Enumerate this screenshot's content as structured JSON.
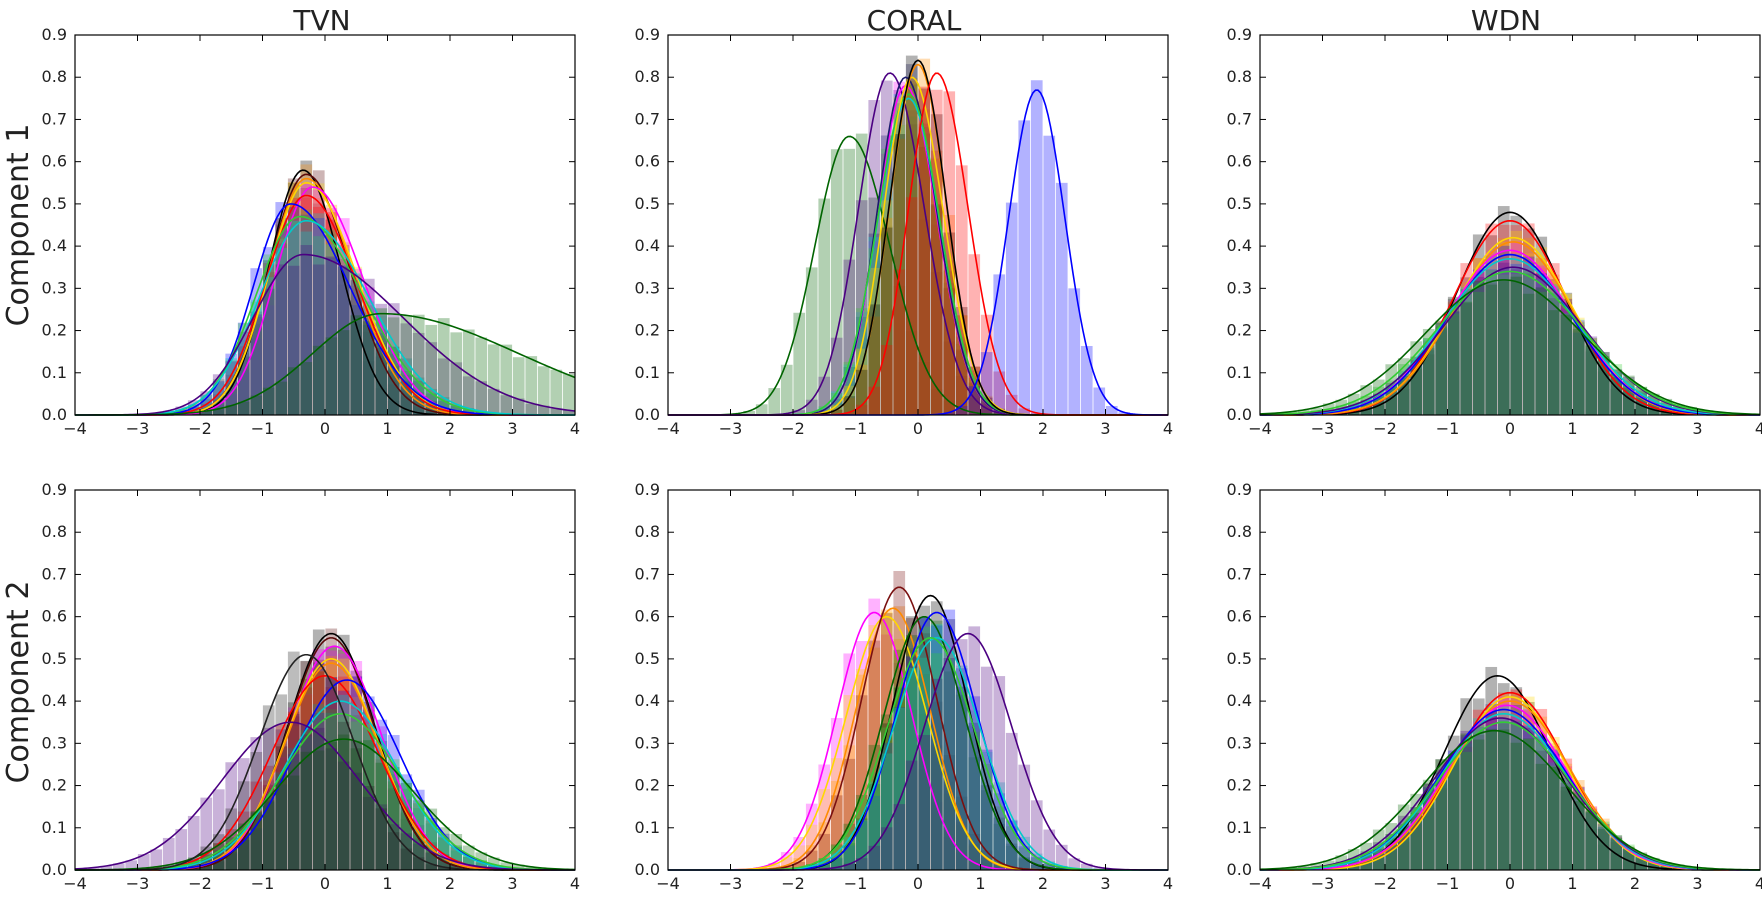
{
  "figure": {
    "column_titles": [
      "TVN",
      "CORAL",
      "WDN"
    ],
    "row_labels": [
      "Component 1",
      "Component 2"
    ]
  },
  "axes": {
    "x_ticks": [
      "−4",
      "−3",
      "−2",
      "−1",
      "0",
      "1",
      "2",
      "3",
      "4"
    ],
    "y_ticks": [
      "0.0",
      "0.1",
      "0.2",
      "0.3",
      "0.4",
      "0.5",
      "0.6",
      "0.7",
      "0.8",
      "0.9"
    ],
    "xlim": [
      -4,
      4
    ],
    "ylim": [
      0,
      0.9
    ]
  },
  "chart_data": [
    {
      "type": "area",
      "title": "TVN",
      "ylabel": "Component 1",
      "xlim": [
        -4,
        4
      ],
      "ylim": [
        0,
        0.9
      ],
      "series": [
        {
          "name": "black",
          "color": "#000000",
          "segments": [
            {
              "mu": -0.35,
              "sl": 0.55,
              "sr": 0.6,
              "peak": 0.58
            }
          ]
        },
        {
          "name": "darkred",
          "color": "#5a0a0a",
          "segments": [
            {
              "mu": -0.3,
              "sl": 0.6,
              "sr": 0.7,
              "peak": 0.57
            }
          ]
        },
        {
          "name": "orange",
          "color": "#ff8c00",
          "segments": [
            {
              "mu": -0.3,
              "sl": 0.6,
              "sr": 0.75,
              "peak": 0.56
            }
          ]
        },
        {
          "name": "yellow",
          "color": "#ffd700",
          "segments": [
            {
              "mu": -0.3,
              "sl": 0.6,
              "sr": 0.8,
              "peak": 0.55
            }
          ]
        },
        {
          "name": "magenta",
          "color": "#ff00ff",
          "segments": [
            {
              "mu": -0.2,
              "sl": 0.6,
              "sr": 0.8,
              "peak": 0.54
            }
          ]
        },
        {
          "name": "red",
          "color": "#ff0000",
          "segments": [
            {
              "mu": -0.3,
              "sl": 0.65,
              "sr": 0.8,
              "peak": 0.52
            }
          ]
        },
        {
          "name": "blue",
          "color": "#0000ff",
          "segments": [
            {
              "mu": -0.55,
              "sl": 0.6,
              "sr": 0.95,
              "peak": 0.5
            }
          ]
        },
        {
          "name": "lime",
          "color": "#33cc33",
          "segments": [
            {
              "mu": -0.4,
              "sl": 0.7,
              "sr": 1.0,
              "peak": 0.47
            }
          ]
        },
        {
          "name": "cyan",
          "color": "#00cccc",
          "segments": [
            {
              "mu": -0.3,
              "sl": 0.75,
              "sr": 1.0,
              "peak": 0.46
            }
          ]
        },
        {
          "name": "indigo",
          "color": "#4b0082",
          "segments": [
            {
              "mu": -0.35,
              "sl": 0.8,
              "sr": 1.6,
              "peak": 0.38
            }
          ]
        },
        {
          "name": "darkgreen",
          "color": "#006400",
          "segments": [
            {
              "mu": 0.9,
              "sl": 1.1,
              "sr": 2.2,
              "peak": 0.24
            }
          ]
        }
      ]
    },
    {
      "type": "area",
      "title": "CORAL",
      "ylabel": "",
      "xlim": [
        -4,
        4
      ],
      "ylim": [
        0,
        0.9
      ],
      "series": [
        {
          "name": "darkgreen",
          "color": "#006400",
          "segments": [
            {
              "mu": -1.1,
              "sl": 0.55,
              "sr": 0.65,
              "peak": 0.66
            }
          ]
        },
        {
          "name": "indigo",
          "color": "#4b0082",
          "segments": [
            {
              "mu": -0.45,
              "sl": 0.5,
              "sr": 0.55,
              "peak": 0.81
            }
          ]
        },
        {
          "name": "magenta",
          "color": "#ff00ff",
          "segments": [
            {
              "mu": -0.2,
              "sl": 0.45,
              "sr": 0.5,
              "peak": 0.78
            }
          ]
        },
        {
          "name": "navy",
          "color": "#1a1a6e",
          "segments": [
            {
              "mu": -0.2,
              "sl": 0.45,
              "sr": 0.5,
              "peak": 0.8
            }
          ]
        },
        {
          "name": "cyan",
          "color": "#00cccc",
          "segments": [
            {
              "mu": -0.15,
              "sl": 0.5,
              "sr": 0.5,
              "peak": 0.75
            }
          ]
        },
        {
          "name": "lime",
          "color": "#33cc33",
          "segments": [
            {
              "mu": -0.15,
              "sl": 0.5,
              "sr": 0.5,
              "peak": 0.76
            }
          ]
        },
        {
          "name": "yellow",
          "color": "#ffd700",
          "segments": [
            {
              "mu": -0.1,
              "sl": 0.45,
              "sr": 0.5,
              "peak": 0.8
            }
          ]
        },
        {
          "name": "orange",
          "color": "#ff8c00",
          "segments": [
            {
              "mu": 0.0,
              "sl": 0.45,
              "sr": 0.45,
              "peak": 0.83
            }
          ]
        },
        {
          "name": "black",
          "color": "#000000",
          "segments": [
            {
              "mu": 0.0,
              "sl": 0.45,
              "sr": 0.45,
              "peak": 0.84
            }
          ]
        },
        {
          "name": "red",
          "color": "#ff0000",
          "segments": [
            {
              "mu": 0.3,
              "sl": 0.45,
              "sr": 0.5,
              "peak": 0.81
            }
          ]
        },
        {
          "name": "blue",
          "color": "#0000ff",
          "segments": [
            {
              "mu": 1.9,
              "sl": 0.45,
              "sr": 0.45,
              "peak": 0.77
            }
          ]
        }
      ]
    },
    {
      "type": "area",
      "title": "WDN",
      "ylabel": "",
      "xlim": [
        -4,
        4
      ],
      "ylim": [
        0,
        0.9
      ],
      "series": [
        {
          "name": "black",
          "color": "#000000",
          "segments": [
            {
              "mu": 0.0,
              "sl": 0.85,
              "sr": 0.85,
              "peak": 0.48
            }
          ]
        },
        {
          "name": "red",
          "color": "#ff0000",
          "segments": [
            {
              "mu": 0.0,
              "sl": 0.9,
              "sr": 0.9,
              "peak": 0.46
            }
          ]
        },
        {
          "name": "yellow",
          "color": "#ffd700",
          "segments": [
            {
              "mu": 0.05,
              "sl": 0.95,
              "sr": 0.95,
              "peak": 0.42
            }
          ]
        },
        {
          "name": "orange",
          "color": "#ff8c00",
          "segments": [
            {
              "mu": 0.05,
              "sl": 0.95,
              "sr": 0.95,
              "peak": 0.41
            }
          ]
        },
        {
          "name": "magenta",
          "color": "#ff00ff",
          "segments": [
            {
              "mu": 0.0,
              "sl": 1.0,
              "sr": 1.0,
              "peak": 0.39
            }
          ]
        },
        {
          "name": "blue",
          "color": "#0000ff",
          "segments": [
            {
              "mu": 0.0,
              "sl": 1.0,
              "sr": 1.0,
              "peak": 0.38
            }
          ]
        },
        {
          "name": "cyan",
          "color": "#00cccc",
          "segments": [
            {
              "mu": 0.0,
              "sl": 1.05,
              "sr": 1.05,
              "peak": 0.37
            }
          ]
        },
        {
          "name": "indigo",
          "color": "#4b0082",
          "segments": [
            {
              "mu": 0.05,
              "sl": 1.1,
              "sr": 1.1,
              "peak": 0.35
            }
          ]
        },
        {
          "name": "lime",
          "color": "#33cc33",
          "segments": [
            {
              "mu": 0.0,
              "sl": 1.15,
              "sr": 1.15,
              "peak": 0.34
            }
          ]
        },
        {
          "name": "darkgreen",
          "color": "#006400",
          "segments": [
            {
              "mu": -0.1,
              "sl": 1.25,
              "sr": 1.25,
              "peak": 0.32
            }
          ]
        }
      ]
    },
    {
      "type": "area",
      "title": "TVN",
      "ylabel": "Component 2",
      "xlim": [
        -4,
        4
      ],
      "ylim": [
        0,
        0.9
      ],
      "series": [
        {
          "name": "black",
          "color": "#000000",
          "segments": [
            {
              "mu": 0.1,
              "sl": 0.7,
              "sr": 0.7,
              "peak": 0.56
            }
          ]
        },
        {
          "name": "darkred",
          "color": "#5a0a0a",
          "segments": [
            {
              "mu": 0.1,
              "sl": 0.7,
              "sr": 0.7,
              "peak": 0.55
            }
          ]
        },
        {
          "name": "magenta",
          "color": "#ff00ff",
          "segments": [
            {
              "mu": 0.15,
              "sl": 0.75,
              "sr": 0.75,
              "peak": 0.53
            }
          ]
        },
        {
          "name": "yellow",
          "color": "#ffd700",
          "segments": [
            {
              "mu": 0.1,
              "sl": 0.75,
              "sr": 0.75,
              "peak": 0.5
            }
          ]
        },
        {
          "name": "orange",
          "color": "#ff8c00",
          "segments": [
            {
              "mu": 0.1,
              "sl": 0.75,
              "sr": 0.75,
              "peak": 0.49
            }
          ]
        },
        {
          "name": "red",
          "color": "#ff0000",
          "segments": [
            {
              "mu": 0.0,
              "sl": 0.85,
              "sr": 0.85,
              "peak": 0.46
            }
          ]
        },
        {
          "name": "blue",
          "color": "#0000ff",
          "segments": [
            {
              "mu": 0.35,
              "sl": 0.85,
              "sr": 0.85,
              "peak": 0.45
            }
          ]
        },
        {
          "name": "cyan",
          "color": "#00cccc",
          "segments": [
            {
              "mu": 0.25,
              "sl": 0.9,
              "sr": 0.9,
              "peak": 0.4
            }
          ]
        },
        {
          "name": "lime",
          "color": "#33cc33",
          "segments": [
            {
              "mu": 0.25,
              "sl": 0.95,
              "sr": 0.95,
              "peak": 0.37
            }
          ]
        },
        {
          "name": "indigo",
          "color": "#4b0082",
          "segments": [
            {
              "mu": -0.55,
              "sl": 1.1,
              "sr": 1.1,
              "peak": 0.35
            }
          ]
        },
        {
          "name": "darkgreen",
          "color": "#006400",
          "segments": [
            {
              "mu": 0.3,
              "sl": 1.1,
              "sr": 1.1,
              "peak": 0.31
            }
          ]
        },
        {
          "name": "charcoal",
          "color": "#222222",
          "segments": [
            {
              "mu": -0.3,
              "sl": 0.75,
              "sr": 0.75,
              "peak": 0.51
            }
          ]
        }
      ]
    },
    {
      "type": "area",
      "title": "CORAL",
      "ylabel": "",
      "xlim": [
        -4,
        4
      ],
      "ylim": [
        0,
        0.9
      ],
      "series": [
        {
          "name": "magenta",
          "color": "#ff00ff",
          "segments": [
            {
              "mu": -0.7,
              "sl": 0.6,
              "sr": 0.6,
              "peak": 0.61
            }
          ]
        },
        {
          "name": "orange",
          "color": "#ff8c00",
          "segments": [
            {
              "mu": -0.4,
              "sl": 0.6,
              "sr": 0.6,
              "peak": 0.62
            }
          ]
        },
        {
          "name": "yellow",
          "color": "#ffd700",
          "segments": [
            {
              "mu": -0.5,
              "sl": 0.65,
              "sr": 0.65,
              "peak": 0.6
            }
          ]
        },
        {
          "name": "darkred",
          "color": "#7a1010",
          "segments": [
            {
              "mu": -0.3,
              "sl": 0.6,
              "sr": 0.6,
              "peak": 0.67
            }
          ]
        },
        {
          "name": "black",
          "color": "#000000",
          "segments": [
            {
              "mu": 0.2,
              "sl": 0.6,
              "sr": 0.6,
              "peak": 0.65
            }
          ]
        },
        {
          "name": "darkgreen",
          "color": "#006400",
          "segments": [
            {
              "mu": 0.1,
              "sl": 0.65,
              "sr": 0.65,
              "peak": 0.6
            }
          ]
        },
        {
          "name": "blue",
          "color": "#0000ff",
          "segments": [
            {
              "mu": 0.3,
              "sl": 0.65,
              "sr": 0.65,
              "peak": 0.61
            }
          ]
        },
        {
          "name": "cyan",
          "color": "#00cccc",
          "segments": [
            {
              "mu": 0.3,
              "sl": 0.7,
              "sr": 0.7,
              "peak": 0.55
            }
          ]
        },
        {
          "name": "lime",
          "color": "#33cc33",
          "segments": [
            {
              "mu": 0.2,
              "sl": 0.7,
              "sr": 0.7,
              "peak": 0.55
            }
          ]
        },
        {
          "name": "indigo",
          "color": "#4b0082",
          "segments": [
            {
              "mu": 0.8,
              "sl": 0.7,
              "sr": 0.7,
              "peak": 0.56
            }
          ]
        }
      ]
    },
    {
      "type": "area",
      "title": "WDN",
      "ylabel": "",
      "xlim": [
        -4,
        4
      ],
      "ylim": [
        0,
        0.9
      ],
      "series": [
        {
          "name": "black",
          "color": "#000000",
          "segments": [
            {
              "mu": -0.2,
              "sl": 0.85,
              "sr": 0.85,
              "peak": 0.46
            }
          ]
        },
        {
          "name": "red",
          "color": "#ff0000",
          "segments": [
            {
              "mu": 0.0,
              "sl": 0.9,
              "sr": 0.9,
              "peak": 0.42
            }
          ]
        },
        {
          "name": "yellow",
          "color": "#ffd700",
          "segments": [
            {
              "mu": 0.0,
              "sl": 0.9,
              "sr": 0.9,
              "peak": 0.41
            }
          ]
        },
        {
          "name": "orange",
          "color": "#ff8c00",
          "segments": [
            {
              "mu": 0.0,
              "sl": 0.95,
              "sr": 0.95,
              "peak": 0.4
            }
          ]
        },
        {
          "name": "magenta",
          "color": "#ff00ff",
          "segments": [
            {
              "mu": -0.05,
              "sl": 0.95,
              "sr": 0.95,
              "peak": 0.39
            }
          ]
        },
        {
          "name": "blue",
          "color": "#0000ff",
          "segments": [
            {
              "mu": -0.1,
              "sl": 1.0,
              "sr": 1.0,
              "peak": 0.38
            }
          ]
        },
        {
          "name": "cyan",
          "color": "#00cccc",
          "segments": [
            {
              "mu": -0.1,
              "sl": 1.0,
              "sr": 1.0,
              "peak": 0.37
            }
          ]
        },
        {
          "name": "indigo",
          "color": "#4b0082",
          "segments": [
            {
              "mu": -0.15,
              "sl": 1.05,
              "sr": 1.05,
              "peak": 0.36
            }
          ]
        },
        {
          "name": "lime",
          "color": "#33cc33",
          "segments": [
            {
              "mu": -0.1,
              "sl": 1.05,
              "sr": 1.05,
              "peak": 0.35
            }
          ]
        },
        {
          "name": "darkgreen",
          "color": "#006400",
          "segments": [
            {
              "mu": -0.25,
              "sl": 1.15,
              "sr": 1.15,
              "peak": 0.33
            }
          ]
        }
      ]
    }
  ]
}
